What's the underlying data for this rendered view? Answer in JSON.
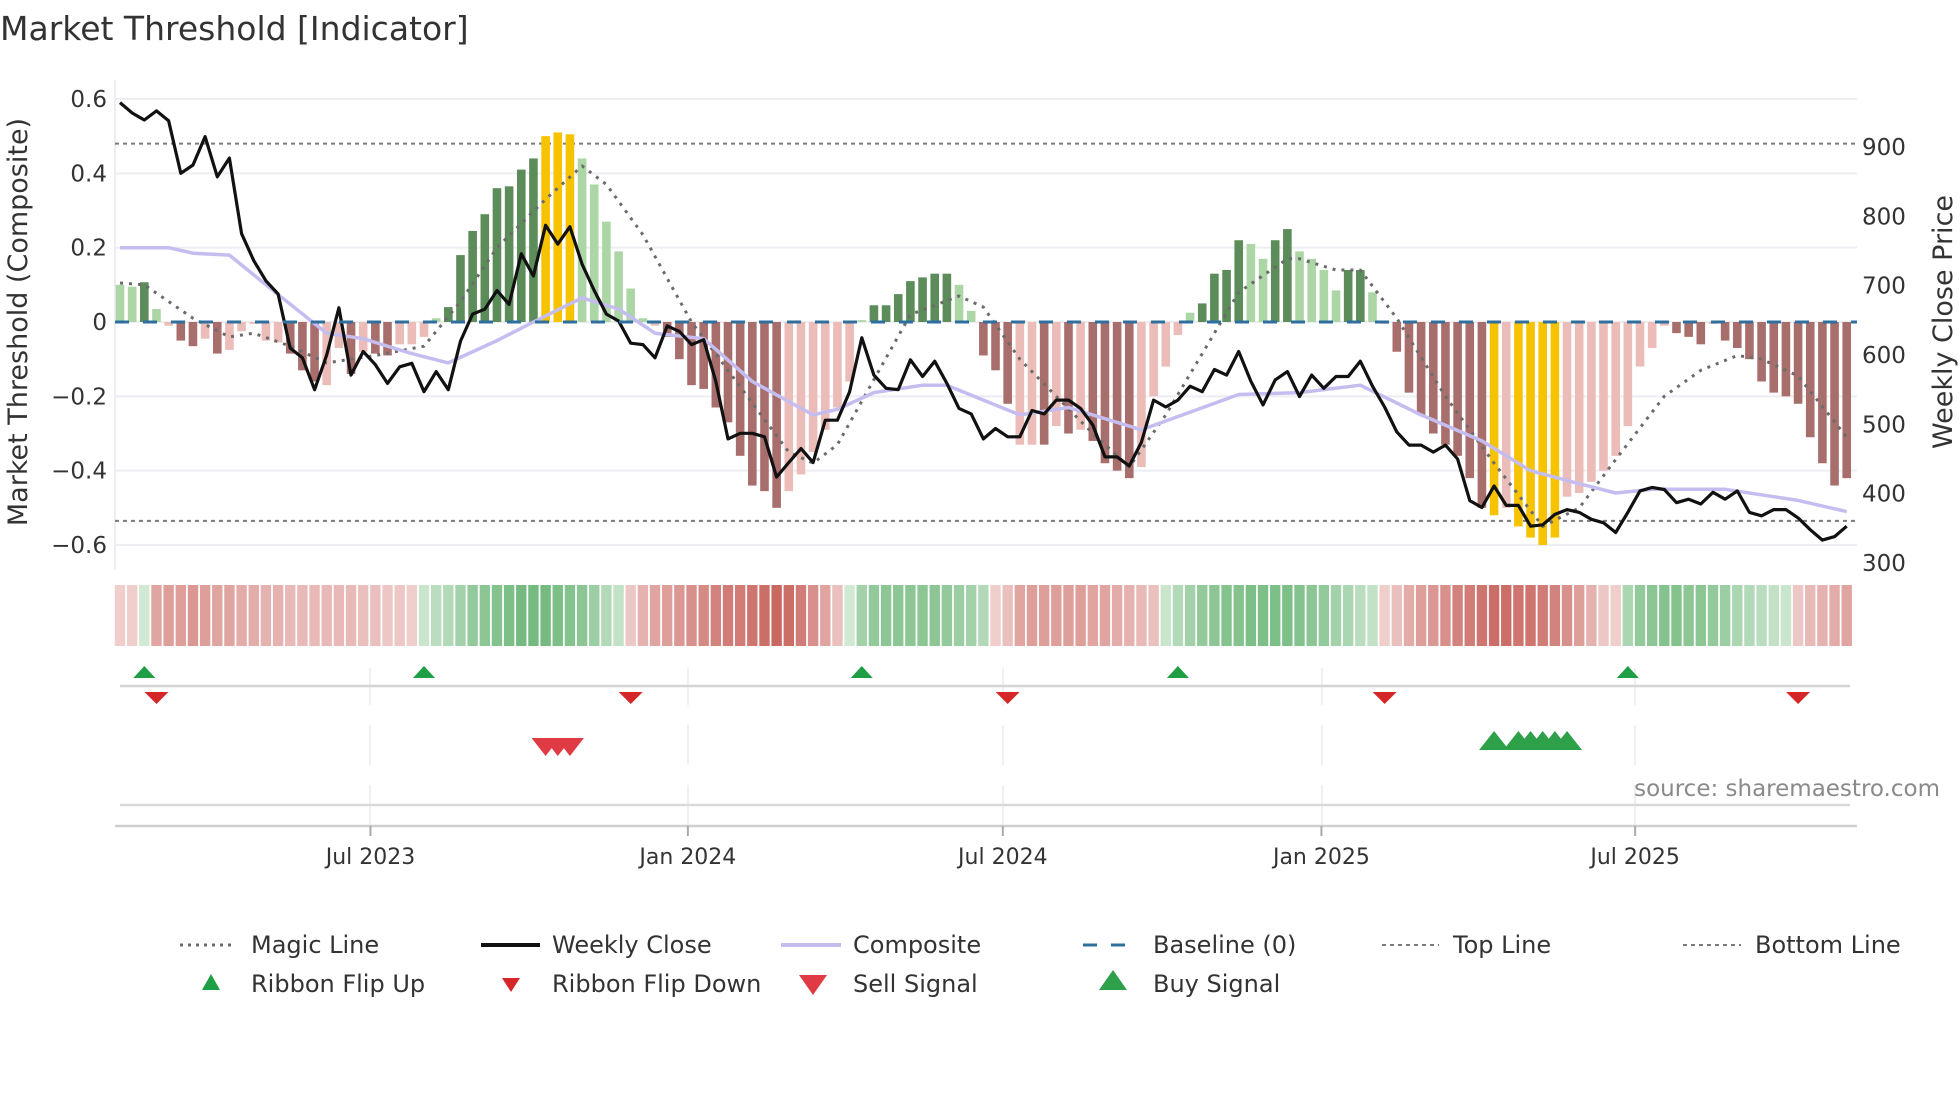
{
  "title": "Market Threshold [Indicator]",
  "source": "source: sharemaestro.com",
  "colors": {
    "bar_dark_green": "#5b8c5a",
    "bar_light_green": "#acd6a6",
    "bar_dark_red": "#a86e6c",
    "bar_pink": "#ebbcb8",
    "bar_yellow": "#f7c200",
    "close": "#111111",
    "composite": "#c5bdf0",
    "magic": "#6b6b6b",
    "baseline": "#2e6f9e",
    "threshold_lines": "#7a7a7a",
    "flip_up": "#1e9e45",
    "flip_down": "#d62728",
    "sell": "#e03a45",
    "buy": "#2ea04a"
  },
  "chart_data": {
    "type": "bar",
    "title": "Market Threshold [Indicator]",
    "ylabel": "Market Threshold (Composite)",
    "y2label": "Weekly Close Price",
    "ylim": [
      -0.65,
      0.65
    ],
    "y2lim": [
      300,
      960
    ],
    "yticks": [
      "0.6",
      "0.4",
      "0.2",
      "0",
      "−0.2",
      "−0.4",
      "−0.6"
    ],
    "ytick_values": [
      0.6,
      0.4,
      0.2,
      0,
      -0.2,
      -0.4,
      -0.6
    ],
    "y2ticks": [
      "900",
      "800",
      "700",
      "600",
      "500",
      "400",
      "300"
    ],
    "y2tick_values": [
      900,
      800,
      700,
      600,
      500,
      400,
      300
    ],
    "xticks": [
      "Jul 2023",
      "Jan 2024",
      "Jul 2024",
      "Jan 2025",
      "Jul 2025"
    ],
    "xtick_week_index": [
      20.6,
      46.7,
      72.6,
      98.8,
      124.6
    ],
    "top_line": 0.48,
    "bottom_line": -0.535,
    "baseline": 0,
    "bar_values": [
      0.1,
      0.095,
      0.107,
      0.035,
      -0.01,
      -0.05,
      -0.065,
      -0.045,
      -0.085,
      -0.075,
      -0.025,
      -0.005,
      -0.05,
      -0.055,
      -0.085,
      -0.13,
      -0.16,
      -0.17,
      -0.07,
      -0.14,
      -0.08,
      -0.085,
      -0.09,
      -0.06,
      -0.06,
      -0.04,
      0.01,
      0.04,
      0.18,
      0.245,
      0.29,
      0.36,
      0.365,
      0.41,
      0.44,
      0.5,
      0.51,
      0.505,
      0.44,
      0.37,
      0.27,
      0.19,
      0.09,
      0.01,
      -0.01,
      -0.04,
      -0.1,
      -0.17,
      -0.18,
      -0.23,
      -0.27,
      -0.36,
      -0.44,
      -0.455,
      -0.5,
      -0.455,
      -0.41,
      -0.35,
      -0.29,
      -0.23,
      -0.16,
      0.005,
      0.045,
      0.045,
      0.075,
      0.11,
      0.12,
      0.13,
      0.13,
      0.1,
      0.03,
      -0.09,
      -0.13,
      -0.22,
      -0.33,
      -0.33,
      -0.33,
      -0.28,
      -0.3,
      -0.29,
      -0.32,
      -0.38,
      -0.4,
      -0.42,
      -0.39,
      -0.2,
      -0.12,
      -0.035,
      0.025,
      0.05,
      0.13,
      0.14,
      0.22,
      0.21,
      0.17,
      0.22,
      0.25,
      0.19,
      0.17,
      0.14,
      0.085,
      0.14,
      0.14,
      0.08,
      -0.005,
      -0.08,
      -0.19,
      -0.25,
      -0.3,
      -0.33,
      -0.36,
      -0.42,
      -0.5,
      -0.52,
      -0.5,
      -0.55,
      -0.58,
      -0.6,
      -0.58,
      -0.47,
      -0.46,
      -0.43,
      -0.4,
      -0.36,
      -0.28,
      -0.12,
      -0.07,
      -0.01,
      -0.03,
      -0.04,
      -0.06,
      -0.005,
      -0.05,
      -0.07,
      -0.1,
      -0.16,
      -0.19,
      -0.2,
      -0.22,
      -0.31,
      -0.38,
      -0.44,
      -0.42
    ],
    "bar_types": "LLGLPRRPRPPPPPRRRPPRPRRPPPLGGGGGGGGYYYLLLLLLPRRRRRRRRRRPPPPPPLGGGGGGGLLRRRPPRPRPRRRRPPPPLGGGGLLGGLLLLGGLPRRRRRRRRYPYYYYPPPPPPPPPRRRPRRRRRRRRRRRP",
    "bar_type_legend": {
      "G": "rising positive",
      "L": "falling positive",
      "R": "falling negative",
      "P": "rising negative",
      "Y": "extreme"
    },
    "weekly_close": [
      964,
      949,
      939,
      952,
      938,
      862,
      874,
      915,
      857,
      884,
      775,
      736,
      707,
      688,
      610,
      596,
      550,
      600,
      668,
      571,
      605,
      586,
      559,
      583,
      588,
      547,
      576,
      550,
      620,
      659,
      666,
      693,
      673,
      746,
      714,
      787,
      760,
      785,
      731,
      693,
      659,
      649,
      617,
      615,
      596,
      642,
      634,
      615,
      622,
      562,
      479,
      487,
      487,
      482,
      424,
      445,
      465,
      445,
      506,
      506,
      547,
      625,
      571,
      552,
      550,
      593,
      569,
      591,
      559,
      523,
      515,
      479,
      494,
      482,
      482,
      520,
      515,
      535,
      535,
      523,
      499,
      453,
      453,
      440,
      474,
      535,
      525,
      535,
      555,
      547,
      579,
      571,
      605,
      562,
      528,
      564,
      576,
      540,
      571,
      552,
      569,
      569,
      591,
      555,
      525,
      489,
      470,
      470,
      460,
      470,
      450,
      390,
      380,
      411,
      383,
      383,
      353,
      355,
      370,
      377,
      373,
      363,
      358,
      344,
      373,
      404,
      409,
      406,
      387,
      392,
      385,
      402,
      392,
      404,
      373,
      368,
      377,
      377,
      365,
      348,
      333,
      338,
      353
    ],
    "composite_line": [
      [
        0,
        0.2
      ],
      [
        4,
        0.2
      ],
      [
        6,
        0.185
      ],
      [
        9,
        0.18
      ],
      [
        12,
        0.1
      ],
      [
        17,
        -0.03
      ],
      [
        20,
        -0.045
      ],
      [
        24,
        -0.085
      ],
      [
        27,
        -0.11
      ],
      [
        31,
        -0.05
      ],
      [
        34,
        0
      ],
      [
        38,
        0.065
      ],
      [
        41,
        0.035
      ],
      [
        44,
        -0.03
      ],
      [
        48,
        -0.045
      ],
      [
        52,
        -0.16
      ],
      [
        57,
        -0.25
      ],
      [
        59,
        -0.235
      ],
      [
        62,
        -0.19
      ],
      [
        66,
        -0.17
      ],
      [
        68,
        -0.17
      ],
      [
        71,
        -0.21
      ],
      [
        74,
        -0.25
      ],
      [
        78,
        -0.23
      ],
      [
        84,
        -0.29
      ],
      [
        92,
        -0.195
      ],
      [
        97,
        -0.19
      ],
      [
        102,
        -0.17
      ],
      [
        107,
        -0.25
      ],
      [
        112,
        -0.32
      ],
      [
        116,
        -0.4
      ],
      [
        120,
        -0.435
      ],
      [
        123,
        -0.46
      ],
      [
        126,
        -0.45
      ],
      [
        132,
        -0.45
      ],
      [
        138,
        -0.48
      ],
      [
        142,
        -0.51
      ]
    ],
    "magic_line": [
      [
        0,
        0.105
      ],
      [
        2,
        0.1
      ],
      [
        6,
        0.01
      ],
      [
        9,
        -0.04
      ],
      [
        11,
        -0.03
      ],
      [
        14,
        -0.065
      ],
      [
        17,
        -0.11
      ],
      [
        21,
        -0.09
      ],
      [
        25,
        -0.065
      ],
      [
        28,
        0.055
      ],
      [
        31,
        0.2
      ],
      [
        35,
        0.33
      ],
      [
        38,
        0.42
      ],
      [
        40,
        0.37
      ],
      [
        43,
        0.235
      ],
      [
        47,
        0
      ],
      [
        50,
        -0.13
      ],
      [
        55,
        -0.35
      ],
      [
        57,
        -0.38
      ],
      [
        59,
        -0.33
      ],
      [
        62,
        -0.155
      ],
      [
        65,
        0.02
      ],
      [
        69,
        0.07
      ],
      [
        71,
        0.04
      ],
      [
        74,
        -0.1
      ],
      [
        80,
        -0.3
      ],
      [
        83,
        -0.39
      ],
      [
        86,
        -0.25
      ],
      [
        92,
        0.08
      ],
      [
        96,
        0.17
      ],
      [
        97,
        0.17
      ],
      [
        100,
        0.14
      ],
      [
        102,
        0.14
      ],
      [
        105,
        0.01
      ],
      [
        109,
        -0.2
      ],
      [
        113,
        -0.38
      ],
      [
        117,
        -0.55
      ],
      [
        120,
        -0.5
      ],
      [
        123,
        -0.37
      ],
      [
        127,
        -0.2
      ],
      [
        130,
        -0.13
      ],
      [
        133,
        -0.09
      ],
      [
        135,
        -0.1
      ],
      [
        138,
        -0.145
      ],
      [
        142,
        -0.31
      ]
    ],
    "ribbon": [
      -0.15,
      -0.15,
      0.15,
      -0.45,
      -0.5,
      -0.5,
      -0.55,
      -0.5,
      -0.45,
      -0.45,
      -0.4,
      -0.4,
      -0.35,
      -0.35,
      -0.3,
      -0.3,
      -0.3,
      -0.3,
      -0.3,
      -0.3,
      -0.25,
      -0.25,
      -0.2,
      -0.2,
      -0.15,
      0.2,
      0.3,
      0.35,
      0.45,
      0.55,
      0.6,
      0.65,
      0.7,
      0.75,
      0.75,
      0.75,
      0.7,
      0.65,
      0.6,
      0.5,
      0.35,
      0.25,
      -0.2,
      -0.35,
      -0.45,
      -0.5,
      -0.55,
      -0.6,
      -0.65,
      -0.7,
      -0.75,
      -0.75,
      -0.8,
      -0.85,
      -0.9,
      -0.85,
      -0.75,
      -0.6,
      -0.45,
      -0.25,
      0.15,
      0.45,
      0.55,
      0.6,
      0.6,
      0.6,
      0.6,
      0.6,
      0.55,
      0.5,
      0.45,
      0.35,
      -0.15,
      -0.25,
      -0.45,
      -0.5,
      -0.5,
      -0.5,
      -0.5,
      -0.5,
      -0.45,
      -0.45,
      -0.4,
      -0.35,
      -0.3,
      -0.25,
      0.2,
      0.35,
      0.45,
      0.55,
      0.6,
      0.65,
      0.65,
      0.7,
      0.7,
      0.7,
      0.7,
      0.65,
      0.6,
      0.55,
      0.45,
      0.4,
      0.3,
      0.25,
      -0.15,
      -0.25,
      -0.4,
      -0.5,
      -0.55,
      -0.6,
      -0.7,
      -0.75,
      -0.8,
      -0.85,
      -0.85,
      -0.8,
      -0.8,
      -0.75,
      -0.7,
      -0.6,
      -0.5,
      -0.35,
      -0.2,
      -0.15,
      0.4,
      0.55,
      0.6,
      0.65,
      0.65,
      0.6,
      0.6,
      0.55,
      0.5,
      0.4,
      0.35,
      0.3,
      0.25,
      0.2,
      -0.2,
      -0.3,
      -0.35,
      -0.4,
      -0.45
    ],
    "ribbon_flip_up": [
      2,
      25,
      61,
      87,
      124
    ],
    "ribbon_flip_down": [
      3,
      42,
      73,
      104,
      138
    ],
    "sell_signals": [
      35,
      36,
      37
    ],
    "buy_signals": [
      113,
      115,
      116,
      117,
      118,
      119
    ]
  },
  "legend": {
    "magic": "Magic Line",
    "close": "Weekly Close",
    "composite": "Composite",
    "baseline": "Baseline (0)",
    "top": "Top Line",
    "bottom": "Bottom Line",
    "flip_up": "Ribbon Flip Up",
    "flip_down": "Ribbon Flip Down",
    "sell": "Sell Signal",
    "buy": "Buy Signal"
  }
}
